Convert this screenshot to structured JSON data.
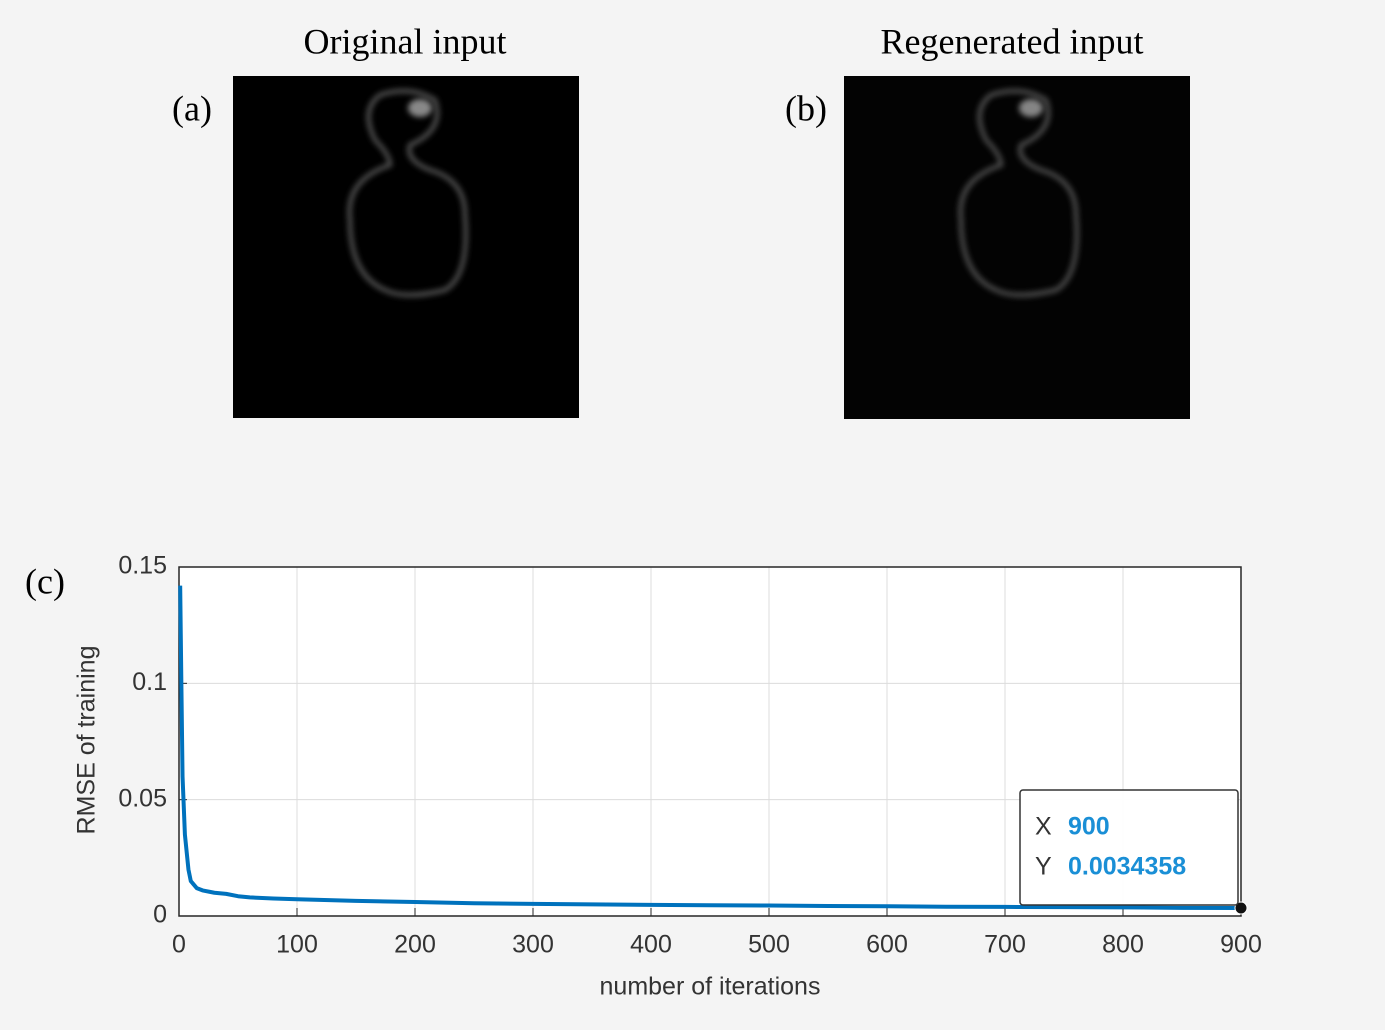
{
  "panels": [
    {
      "tag": "(a)",
      "title": "Original input"
    },
    {
      "tag": "(b)",
      "title": "Regenerated input"
    }
  ],
  "chart_data": {
    "type": "line",
    "panel_tag": "(c)",
    "x_label": "number of iterations",
    "y_label": "RMSE of training",
    "xlim": [
      0,
      900
    ],
    "ylim": [
      0,
      0.15
    ],
    "xticks": [
      0,
      100,
      200,
      300,
      400,
      500,
      600,
      700,
      800,
      900
    ],
    "yticks": [
      0,
      0.05,
      0.1,
      0.15
    ],
    "grid": true,
    "x": [
      1,
      2,
      3,
      5,
      8,
      10,
      15,
      20,
      30,
      40,
      50,
      60,
      80,
      100,
      150,
      200,
      250,
      300,
      350,
      400,
      450,
      500,
      550,
      600,
      650,
      700,
      750,
      800,
      850,
      900
    ],
    "series": [
      {
        "color": "#0072bd",
        "values": [
          0.142,
          0.1,
          0.06,
          0.035,
          0.02,
          0.015,
          0.012,
          0.011,
          0.01,
          0.0095,
          0.0085,
          0.008,
          0.0075,
          0.0072,
          0.0065,
          0.006,
          0.0055,
          0.0052,
          0.005,
          0.0048,
          0.0046,
          0.0045,
          0.0043,
          0.0042,
          0.004,
          0.0039,
          0.0038,
          0.0037,
          0.0035,
          0.0034358
        ]
      }
    ],
    "datatip": {
      "x_name": "X",
      "x": 900,
      "y_name": "Y",
      "y": 0.0034358
    }
  }
}
